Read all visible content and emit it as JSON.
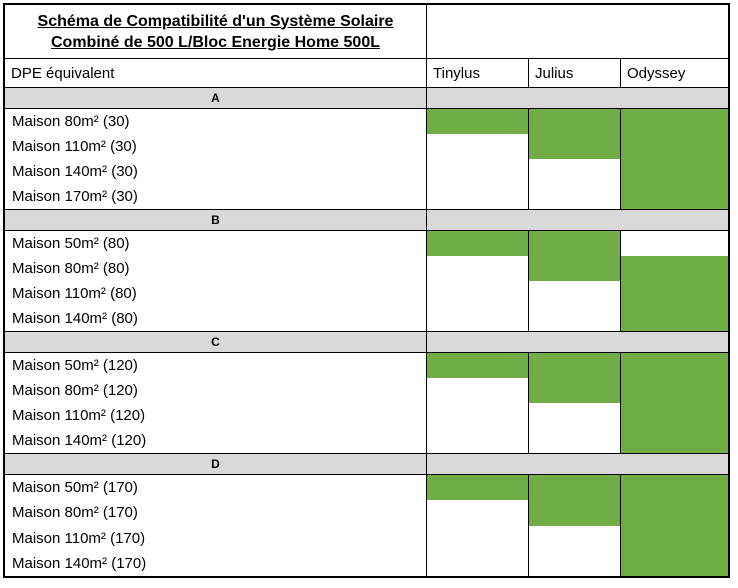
{
  "title": {
    "line1": "Schéma de Compatibilité d'un Système Solaire",
    "line2": "Combiné de 500 L/Bloc Energie Home 500L"
  },
  "header": {
    "row_label": "DPE équivalent",
    "columns": [
      "Tinylus",
      "Julius",
      "Odyssey"
    ]
  },
  "colors": {
    "compatible_green": "#70AD47",
    "section_bar_gray": "#D9D9D9",
    "border_black": "#000000"
  },
  "sections": [
    {
      "label": "A",
      "rows": [
        {
          "label": "Maison 80m² (30)",
          "compat": [
            true,
            true,
            true
          ]
        },
        {
          "label": "Maison 110m² (30)",
          "compat": [
            false,
            true,
            true
          ]
        },
        {
          "label": "Maison 140m² (30)",
          "compat": [
            false,
            false,
            true
          ]
        },
        {
          "label": "Maison 170m² (30)",
          "compat": [
            false,
            false,
            true
          ]
        }
      ]
    },
    {
      "label": "B",
      "rows": [
        {
          "label": "Maison 50m² (80)",
          "compat": [
            true,
            true,
            false
          ]
        },
        {
          "label": "Maison 80m² (80)",
          "compat": [
            false,
            true,
            true
          ]
        },
        {
          "label": "Maison 110m² (80)",
          "compat": [
            false,
            false,
            true
          ]
        },
        {
          "label": "Maison 140m² (80)",
          "compat": [
            false,
            false,
            true
          ]
        }
      ]
    },
    {
      "label": "C",
      "rows": [
        {
          "label": "Maison 50m² (120)",
          "compat": [
            true,
            true,
            true
          ]
        },
        {
          "label": "Maison 80m² (120)",
          "compat": [
            false,
            true,
            true
          ]
        },
        {
          "label": "Maison 110m² (120)",
          "compat": [
            false,
            false,
            true
          ]
        },
        {
          "label": "Maison 140m² (120)",
          "compat": [
            false,
            false,
            true
          ]
        }
      ]
    },
    {
      "label": "D",
      "rows": [
        {
          "label": "Maison 50m² (170)",
          "compat": [
            true,
            true,
            true
          ]
        },
        {
          "label": "Maison 80m² (170)",
          "compat": [
            false,
            true,
            true
          ]
        },
        {
          "label": "Maison 110m² (170)",
          "compat": [
            false,
            false,
            true
          ]
        },
        {
          "label": "Maison 140m² (170)",
          "compat": [
            false,
            false,
            true
          ]
        }
      ]
    }
  ]
}
